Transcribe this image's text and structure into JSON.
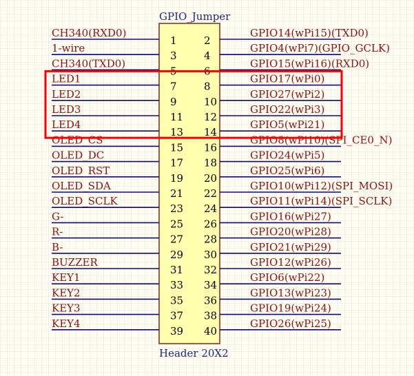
{
  "colors": {
    "wire": "#0a0a7a",
    "net_label": "#8a1212",
    "pin_number": "#000000",
    "header_fill": "#ffffb0",
    "header_stroke": "#7a2a1a",
    "title": "#1a2a80",
    "highlight": "#ff0000"
  },
  "component": {
    "designator": "GPIO_Jumper",
    "footprint": "Header 20X2"
  },
  "pins": [
    {
      "left_pin": "1",
      "right_pin": "2",
      "left_net": "CH340(RXD0)",
      "right_net": "GPIO14(wPi15)(TXD0)"
    },
    {
      "left_pin": "3",
      "right_pin": "4",
      "left_net": "1-wire",
      "right_net": "GPIO4(wPi7)(GPIO_GCLK)"
    },
    {
      "left_pin": "5",
      "right_pin": "6",
      "left_net": "CH340(TXD0)",
      "right_net": "GPIO15(wPi16)(RXD0)"
    },
    {
      "left_pin": "7",
      "right_pin": "8",
      "left_net": "LED1",
      "right_net": "GPIO17(wPi0)"
    },
    {
      "left_pin": "9",
      "right_pin": "10",
      "left_net": "LED2",
      "right_net": "GPIO27(wPi2)"
    },
    {
      "left_pin": "11",
      "right_pin": "12",
      "left_net": "LED3",
      "right_net": "GPIO22(wPi3)"
    },
    {
      "left_pin": "13",
      "right_pin": "14",
      "left_net": "LED4",
      "right_net": "GPIO5(wPi21)"
    },
    {
      "left_pin": "15",
      "right_pin": "16",
      "left_net": "OLED_CS",
      "right_net": "GPIO8(wPi10)(SPI_CE0_N)"
    },
    {
      "left_pin": "17",
      "right_pin": "18",
      "left_net": "OLED_DC",
      "right_net": "GPIO24(wPi5)"
    },
    {
      "left_pin": "19",
      "right_pin": "20",
      "left_net": "OLED_RST",
      "right_net": "GPIO25(wPi6)"
    },
    {
      "left_pin": "21",
      "right_pin": "22",
      "left_net": "OLED_SDA",
      "right_net": "GPIO10(wPi12)(SPI_MOSI)"
    },
    {
      "left_pin": "23",
      "right_pin": "24",
      "left_net": "OLED_SCLK",
      "right_net": "GPIO11(wPi14)(SPI_SCLK)"
    },
    {
      "left_pin": "25",
      "right_pin": "26",
      "left_net": "G-",
      "right_net": "GPIO16(wPi27)"
    },
    {
      "left_pin": "27",
      "right_pin": "28",
      "left_net": "R-",
      "right_net": "GPIO20(wPi28)"
    },
    {
      "left_pin": "29",
      "right_pin": "30",
      "left_net": "B-",
      "right_net": "GPIO21(wPi29)"
    },
    {
      "left_pin": "31",
      "right_pin": "32",
      "left_net": "BUZZER",
      "right_net": "GPIO12(wPi26)"
    },
    {
      "left_pin": "33",
      "right_pin": "34",
      "left_net": "KEY1",
      "right_net": "GPIO6(wPi22)"
    },
    {
      "left_pin": "35",
      "right_pin": "36",
      "left_net": "KEY2",
      "right_net": "GPIO13(wPi23)"
    },
    {
      "left_pin": "37",
      "right_pin": "38",
      "left_net": "KEY3",
      "right_net": "GPIO19(wPi24)"
    },
    {
      "left_pin": "39",
      "right_pin": "40",
      "left_net": "KEY4",
      "right_net": "GPIO26(wPi25)"
    }
  ],
  "highlighted_rows": [
    3,
    4,
    5,
    6
  ]
}
